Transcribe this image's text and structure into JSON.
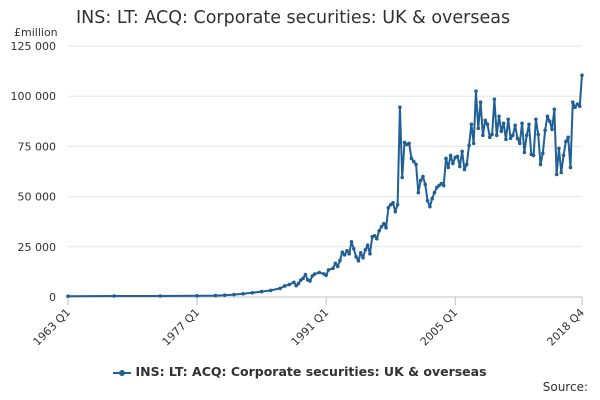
{
  "chart_data": {
    "type": "line",
    "title": "INS: LT: ACQ: Corporate securities: UK & overseas",
    "ylabel": "£million",
    "xlabel": "",
    "ylim": [
      0,
      125000
    ],
    "yticks": [
      0,
      25000,
      50000,
      75000,
      100000,
      125000
    ],
    "ytick_labels": [
      "0",
      "25 000",
      "50 000",
      "75 000",
      "100 000",
      "125 000"
    ],
    "xtick_labels": [
      "1963 Q1",
      "1977 Q1",
      "1991 Q1",
      "2005 Q1",
      "2018 Q4"
    ],
    "grid": true,
    "legend_position": "bottom",
    "series": [
      {
        "name": "INS: LT: ACQ: Corporate securities: UK & overseas",
        "color": "#206095",
        "points": [
          [
            "1963 Q1",
            400
          ],
          [
            "1968 Q1",
            500
          ],
          [
            "1973 Q1",
            500
          ],
          [
            "1977 Q1",
            600
          ],
          [
            "1979 Q1",
            700
          ],
          [
            "1980 Q1",
            900
          ],
          [
            "1981 Q1",
            1200
          ],
          [
            "1982 Q1",
            1600
          ],
          [
            "1983 Q1",
            2100
          ],
          [
            "1984 Q1",
            2700
          ],
          [
            "1985 Q1",
            3300
          ],
          [
            "1986 Q1",
            4300
          ],
          [
            "1986 Q3",
            5500
          ],
          [
            "1987 Q1",
            6200
          ],
          [
            "1987 Q3",
            7300
          ],
          [
            "1987 Q4",
            5600
          ],
          [
            "1988 Q1",
            6700
          ],
          [
            "1988 Q2",
            8400
          ],
          [
            "1988 Q3",
            9300
          ],
          [
            "1988 Q4",
            11200
          ],
          [
            "1989 Q1",
            8500
          ],
          [
            "1989 Q2",
            8000
          ],
          [
            "1989 Q3",
            10500
          ],
          [
            "1989 Q4",
            11400
          ],
          [
            "1990 Q2",
            12200
          ],
          [
            "1990 Q4",
            11500
          ],
          [
            "1991 Q1",
            10800
          ],
          [
            "1991 Q2",
            13500
          ],
          [
            "1991 Q4",
            14300
          ],
          [
            "1992 Q1",
            16800
          ],
          [
            "1992 Q2",
            15200
          ],
          [
            "1992 Q3",
            18200
          ],
          [
            "1992 Q4",
            22300
          ],
          [
            "1993 Q1",
            21000
          ],
          [
            "1993 Q2",
            23000
          ],
          [
            "1993 Q3",
            21500
          ],
          [
            "1993 Q4",
            27500
          ],
          [
            "1994 Q1",
            24000
          ],
          [
            "1994 Q2",
            20000
          ],
          [
            "1994 Q3",
            18000
          ],
          [
            "1994 Q4",
            22000
          ],
          [
            "1995 Q1",
            19500
          ],
          [
            "1995 Q2",
            23500
          ],
          [
            "1995 Q3",
            25800
          ],
          [
            "1995 Q4",
            21500
          ],
          [
            "1996 Q1",
            30000
          ],
          [
            "1996 Q2",
            30500
          ],
          [
            "1996 Q3",
            29000
          ],
          [
            "1996 Q4",
            33000
          ],
          [
            "1997 Q1",
            35000
          ],
          [
            "1997 Q2",
            36500
          ],
          [
            "1997 Q3",
            34500
          ],
          [
            "1997 Q4",
            44500
          ],
          [
            "1998 Q1",
            46000
          ],
          [
            "1998 Q2",
            47000
          ],
          [
            "1998 Q3",
            42500
          ],
          [
            "1998 Q4",
            46000
          ],
          [
            "1999 Q1",
            94500
          ],
          [
            "1999 Q2",
            59500
          ],
          [
            "1999 Q3",
            77000
          ],
          [
            "1999 Q4",
            76000
          ],
          [
            "2000 Q1",
            76500
          ],
          [
            "2000 Q2",
            69000
          ],
          [
            "2000 Q3",
            67500
          ],
          [
            "2000 Q4",
            66000
          ],
          [
            "2001 Q1",
            52000
          ],
          [
            "2001 Q2",
            58000
          ],
          [
            "2001 Q3",
            60000
          ],
          [
            "2001 Q4",
            56000
          ],
          [
            "2002 Q1",
            48000
          ],
          [
            "2002 Q2",
            45000
          ],
          [
            "2002 Q3",
            49000
          ],
          [
            "2002 Q4",
            52000
          ],
          [
            "2003 Q1",
            54500
          ],
          [
            "2003 Q2",
            55500
          ],
          [
            "2003 Q3",
            56500
          ],
          [
            "2003 Q4",
            55500
          ],
          [
            "2004 Q1",
            69000
          ],
          [
            "2004 Q2",
            64500
          ],
          [
            "2004 Q3",
            70500
          ],
          [
            "2004 Q4",
            66500
          ],
          [
            "2005 Q1",
            69500
          ],
          [
            "2005 Q2",
            70000
          ],
          [
            "2005 Q3",
            65000
          ],
          [
            "2005 Q4",
            72500
          ],
          [
            "2006 Q1",
            63500
          ],
          [
            "2006 Q2",
            66000
          ],
          [
            "2006 Q3",
            75500
          ],
          [
            "2006 Q4",
            86000
          ],
          [
            "2007 Q1",
            76500
          ],
          [
            "2007 Q2",
            102500
          ],
          [
            "2007 Q3",
            84000
          ],
          [
            "2007 Q4",
            97000
          ],
          [
            "2008 Q1",
            80500
          ],
          [
            "2008 Q2",
            88000
          ],
          [
            "2008 Q3",
            86000
          ],
          [
            "2008 Q4",
            79500
          ],
          [
            "2009 Q1",
            81000
          ],
          [
            "2009 Q2",
            98500
          ],
          [
            "2009 Q3",
            80500
          ],
          [
            "2009 Q4",
            90000
          ],
          [
            "2010 Q1",
            82500
          ],
          [
            "2010 Q2",
            86500
          ],
          [
            "2010 Q3",
            78500
          ],
          [
            "2010 Q4",
            88500
          ],
          [
            "2011 Q1",
            79000
          ],
          [
            "2011 Q2",
            80500
          ],
          [
            "2011 Q3",
            85500
          ],
          [
            "2011 Q4",
            79000
          ],
          [
            "2012 Q1",
            76500
          ],
          [
            "2012 Q2",
            86500
          ],
          [
            "2012 Q3",
            72000
          ],
          [
            "2012 Q4",
            80500
          ],
          [
            "2013 Q1",
            86000
          ],
          [
            "2013 Q2",
            71000
          ],
          [
            "2013 Q3",
            70500
          ],
          [
            "2013 Q4",
            88500
          ],
          [
            "2014 Q1",
            81000
          ],
          [
            "2014 Q2",
            66000
          ],
          [
            "2014 Q3",
            71500
          ],
          [
            "2014 Q4",
            83000
          ],
          [
            "2015 Q1",
            90000
          ],
          [
            "2015 Q2",
            87500
          ],
          [
            "2015 Q3",
            83500
          ],
          [
            "2015 Q4",
            93500
          ],
          [
            "2016 Q1",
            61000
          ],
          [
            "2016 Q2",
            74000
          ],
          [
            "2016 Q3",
            62000
          ],
          [
            "2016 Q4",
            70500
          ],
          [
            "2017 Q1",
            77500
          ],
          [
            "2017 Q2",
            79500
          ],
          [
            "2017 Q3",
            64500
          ],
          [
            "2017 Q4",
            97000
          ],
          [
            "2018 Q1",
            94500
          ],
          [
            "2018 Q2",
            96000
          ],
          [
            "2018 Q3",
            95000
          ],
          [
            "2018 Q4",
            110500
          ]
        ]
      }
    ]
  },
  "legend": {
    "label": "INS: LT: ACQ: Corporate securities: UK & overseas"
  },
  "source": {
    "label": "Source:"
  }
}
